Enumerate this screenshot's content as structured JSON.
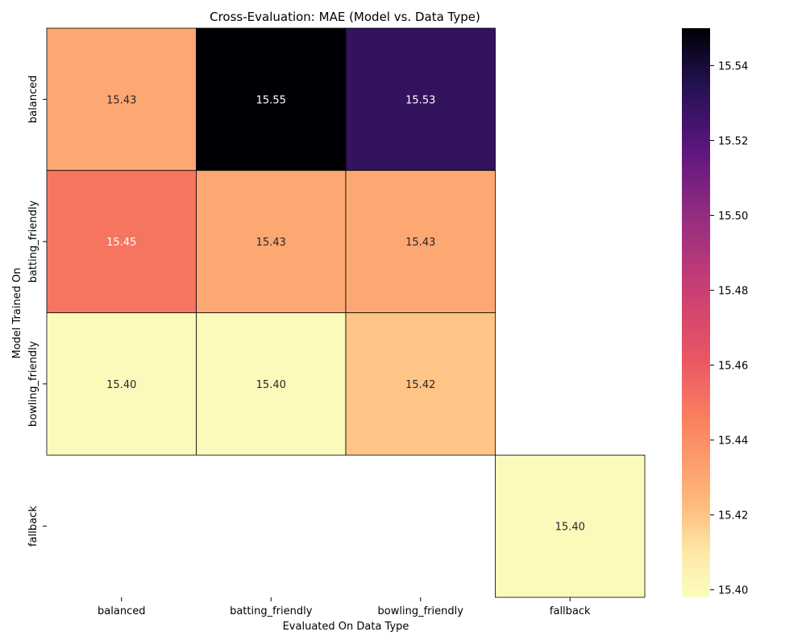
{
  "chart_data": {
    "type": "heatmap",
    "title": "Cross-Evaluation: MAE (Model vs. Data Type)",
    "xlabel": "Evaluated On Data Type",
    "ylabel": "Model Trained On",
    "x_categories": [
      "balanced",
      "batting_friendly",
      "bowling_friendly",
      "fallback"
    ],
    "y_categories": [
      "balanced",
      "batting_friendly",
      "bowling_friendly",
      "fallback"
    ],
    "values": [
      [
        15.43,
        15.55,
        15.53,
        null
      ],
      [
        15.45,
        15.43,
        15.43,
        null
      ],
      [
        15.4,
        15.4,
        15.42,
        null
      ],
      [
        null,
        null,
        null,
        15.4
      ]
    ],
    "cell_labels": [
      [
        "15.43",
        "15.55",
        "15.53",
        ""
      ],
      [
        "15.45",
        "15.43",
        "15.43",
        ""
      ],
      [
        "15.40",
        "15.40",
        "15.42",
        ""
      ],
      [
        "",
        "",
        "",
        "15.40"
      ]
    ],
    "colormap": "magma_r",
    "colorbar": {
      "range": [
        15.398,
        15.55
      ],
      "ticks": [
        15.4,
        15.42,
        15.44,
        15.46,
        15.48,
        15.5,
        15.52,
        15.54
      ],
      "tick_labels": [
        "15.40",
        "15.42",
        "15.44",
        "15.46",
        "15.48",
        "15.50",
        "15.52",
        "15.54"
      ]
    },
    "grid": true,
    "legend": "colorbar-right"
  }
}
